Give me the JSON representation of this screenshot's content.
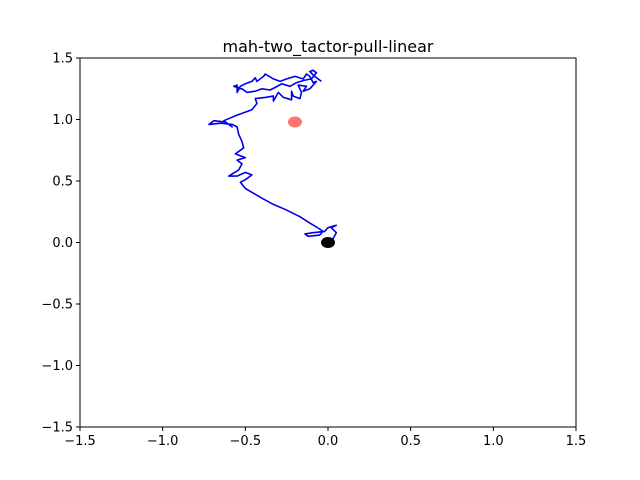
{
  "chart_data": {
    "type": "scatter",
    "title": "mah-two_tactor-pull-linear",
    "xlabel": "",
    "ylabel": "",
    "xlim": [
      -1.5,
      1.5
    ],
    "ylim": [
      -1.5,
      1.5
    ],
    "grid": false,
    "x_ticks": [
      -1.5,
      -1.0,
      -0.5,
      0.0,
      0.5,
      1.0,
      1.5
    ],
    "y_ticks": [
      -1.5,
      -1.0,
      -0.5,
      0.0,
      0.5,
      1.0,
      1.5
    ],
    "x_tick_labels": [
      "−1.5",
      "−1.0",
      "−0.5",
      "0.0",
      "0.5",
      "1.0",
      "1.5"
    ],
    "y_tick_labels": [
      "−1.5",
      "−1.0",
      "−0.5",
      "0.0",
      "0.5",
      "1.0",
      "1.5"
    ],
    "trajectory": {
      "color": "#0000ee",
      "points": [
        [
          0.0,
          0.02
        ],
        [
          0.03,
          0.03
        ],
        [
          0.05,
          0.08
        ],
        [
          0.02,
          0.12
        ],
        [
          0.05,
          0.14
        ],
        [
          0.0,
          0.12
        ],
        [
          -0.02,
          0.09
        ],
        [
          -0.09,
          0.08
        ],
        [
          -0.14,
          0.07
        ],
        [
          -0.12,
          0.05
        ],
        [
          -0.05,
          0.06
        ],
        [
          -0.03,
          0.09
        ],
        [
          -0.05,
          0.11
        ],
        [
          -0.1,
          0.15
        ],
        [
          -0.17,
          0.21
        ],
        [
          -0.26,
          0.27
        ],
        [
          -0.33,
          0.31
        ],
        [
          -0.4,
          0.36
        ],
        [
          -0.45,
          0.4
        ],
        [
          -0.5,
          0.44
        ],
        [
          -0.53,
          0.49
        ],
        [
          -0.5,
          0.51
        ],
        [
          -0.46,
          0.55
        ],
        [
          -0.5,
          0.57
        ],
        [
          -0.55,
          0.54
        ],
        [
          -0.6,
          0.54
        ],
        [
          -0.54,
          0.59
        ],
        [
          -0.52,
          0.64
        ],
        [
          -0.55,
          0.67
        ],
        [
          -0.5,
          0.69
        ],
        [
          -0.56,
          0.72
        ],
        [
          -0.51,
          0.77
        ],
        [
          -0.52,
          0.82
        ],
        [
          -0.54,
          0.88
        ],
        [
          -0.55,
          0.94
        ],
        [
          -0.58,
          0.96
        ],
        [
          -0.65,
          0.97
        ],
        [
          -0.72,
          0.96
        ],
        [
          -0.69,
          0.99
        ],
        [
          -0.62,
          0.98
        ],
        [
          -0.58,
          0.94
        ],
        [
          -0.63,
          0.99
        ],
        [
          -0.56,
          1.03
        ],
        [
          -0.46,
          1.08
        ],
        [
          -0.43,
          1.13
        ],
        [
          -0.44,
          1.17
        ],
        [
          -0.38,
          1.18
        ],
        [
          -0.33,
          1.19
        ],
        [
          -0.33,
          1.15
        ],
        [
          -0.3,
          1.22
        ],
        [
          -0.27,
          1.18
        ],
        [
          -0.22,
          1.16
        ],
        [
          -0.22,
          1.23
        ],
        [
          -0.21,
          1.19
        ],
        [
          -0.17,
          1.17
        ],
        [
          -0.16,
          1.22
        ],
        [
          -0.18,
          1.28
        ],
        [
          -0.13,
          1.27
        ],
        [
          -0.15,
          1.23
        ],
        [
          -0.11,
          1.25
        ],
        [
          -0.07,
          1.31
        ],
        [
          -0.09,
          1.3
        ],
        [
          -0.11,
          1.35
        ],
        [
          -0.13,
          1.37
        ],
        [
          -0.15,
          1.33
        ],
        [
          -0.2,
          1.35
        ],
        [
          -0.25,
          1.33
        ],
        [
          -0.29,
          1.31
        ],
        [
          -0.33,
          1.33
        ],
        [
          -0.38,
          1.37
        ],
        [
          -0.39,
          1.35
        ],
        [
          -0.43,
          1.31
        ],
        [
          -0.44,
          1.34
        ],
        [
          -0.46,
          1.31
        ],
        [
          -0.5,
          1.29
        ],
        [
          -0.53,
          1.27
        ],
        [
          -0.55,
          1.22
        ],
        [
          -0.55,
          1.28
        ],
        [
          -0.57,
          1.27
        ],
        [
          -0.52,
          1.25
        ],
        [
          -0.49,
          1.22
        ],
        [
          -0.44,
          1.23
        ],
        [
          -0.4,
          1.25
        ],
        [
          -0.35,
          1.24
        ],
        [
          -0.32,
          1.26
        ],
        [
          -0.28,
          1.29
        ],
        [
          -0.23,
          1.27
        ],
        [
          -0.19,
          1.3
        ],
        [
          -0.14,
          1.32
        ],
        [
          -0.1,
          1.33
        ],
        [
          -0.07,
          1.38
        ],
        [
          -0.09,
          1.4
        ],
        [
          -0.11,
          1.39
        ],
        [
          -0.08,
          1.35
        ],
        [
          -0.04,
          1.31
        ]
      ]
    },
    "markers": [
      {
        "x": -0.2,
        "y": 0.98,
        "color": "#ff4444",
        "opacity": 0.75
      },
      {
        "x": 0.0,
        "y": 0.0,
        "color": "#000000",
        "opacity": 1.0
      }
    ]
  }
}
